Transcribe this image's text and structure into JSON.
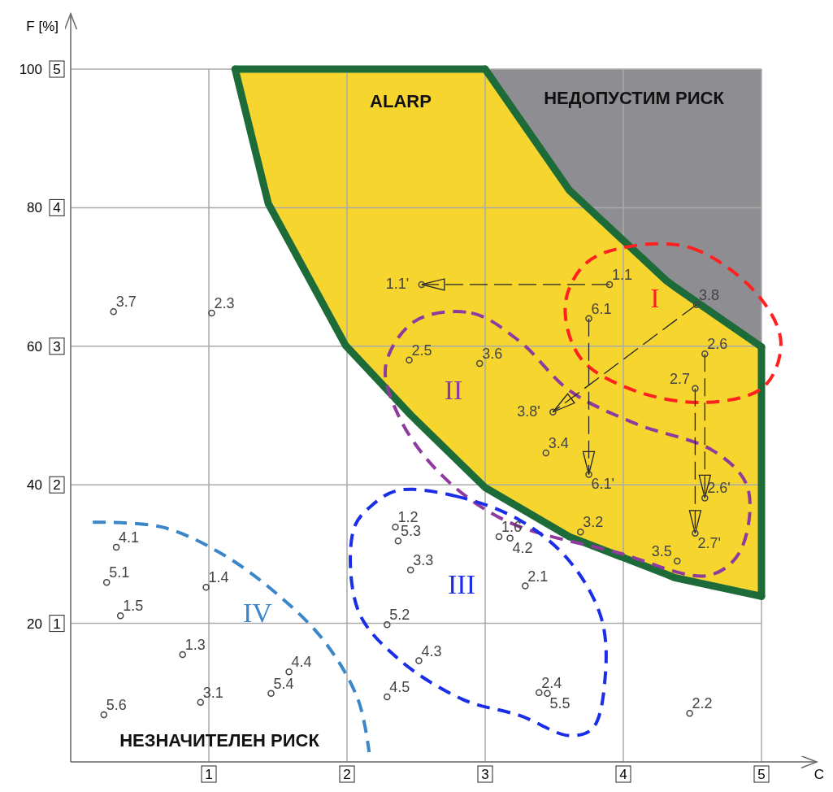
{
  "chart_data": {
    "type": "scatter",
    "xlabel": "C",
    "ylabel": "F [%]",
    "xlim": [
      0,
      5.4
    ],
    "xticks": [
      1,
      2,
      3,
      4,
      5
    ],
    "ylim": [
      0,
      108
    ],
    "yticks": [
      20,
      40,
      60,
      80,
      100
    ],
    "y2lim": [
      0,
      5.4
    ],
    "y2ticks": [
      1,
      2,
      3,
      4,
      5
    ],
    "grid": true,
    "annotations": [
      "ALARP",
      "НЕДОПУСТИМ РИСК",
      "НЕЗНАЧИТЕЛЕН РИСК",
      "I",
      "II",
      "III"
    ],
    "series": [
      {
        "type": "line",
        "color": "#1e6b3a",
        "line_style": "solid",
        "x": [
          3.0,
          3.61,
          4.31,
          4.37,
          5.0
        ],
        "values": [
          100,
          82.5,
          69.5,
          68.6,
          59.9
        ],
        "lower": [
          100,
          82.5,
          69.5,
          68.6,
          59.9
        ],
        "upper": [
          100,
          100,
          100,
          100,
          100
        ]
      },
      {
        "type": "line",
        "color": "#1e6b3a",
        "line_style": "solid",
        "x": [
          1.19,
          1.43,
          1.99,
          2.46,
          3.0,
          3.61,
          4.31,
          4.37,
          5.0
        ],
        "values": [
          100,
          80.6,
          60.1,
          50.1,
          39.6,
          32.5,
          27.1,
          26.6,
          23.9
        ],
        "lower": [
          100,
          80.6,
          60.1,
          50.1,
          39.6,
          32.5,
          27.1,
          26.6,
          23.9
        ],
        "upper": [
          100,
          100,
          100,
          100,
          100,
          82.5,
          69.5,
          68.6,
          59.9
        ]
      },
      {
        "type": "line",
        "color": "#1e6b3a",
        "line_style": "solid",
        "x": [
          1.19,
          3.0
        ],
        "values": [
          100,
          100
        ]
      },
      {
        "type": "line",
        "color": "#1e6b3a",
        "line_style": "solid",
        "x": [
          5.0,
          5.0
        ],
        "values": [
          59.9,
          23.9
        ]
      },
      {
        "type": "line",
        "name": "IV",
        "color": "#3a86c8",
        "line_style": "dashed",
        "x": [
          0.16,
          0.66,
          1.08,
          1.49,
          1.84,
          2.08,
          2.16
        ],
        "values": [
          34.6,
          33.9,
          30.2,
          24.3,
          17.3,
          9.0,
          1.4
        ]
      },
      {
        "name": "3.7",
        "color": "#444444",
        "marker": "circle",
        "x": [
          0.31
        ],
        "values": [
          65.0
        ]
      },
      {
        "name": "2.3",
        "color": "#444444",
        "marker": "circle",
        "x": [
          1.02
        ],
        "values": [
          64.8
        ]
      },
      {
        "name": "1.1'",
        "color": "#444444",
        "marker": "circle",
        "x": [
          2.54
        ],
        "values": [
          68.9
        ]
      },
      {
        "name": "1.1",
        "color": "#444444",
        "marker": "circle",
        "x": [
          3.9
        ],
        "values": [
          68.9
        ]
      },
      {
        "name": "3.8",
        "color": "#444444",
        "marker": "circle",
        "x": [
          4.53
        ],
        "values": [
          66.0
        ]
      },
      {
        "name": "6.1",
        "color": "#444444",
        "marker": "circle",
        "x": [
          3.75
        ],
        "values": [
          64.0
        ]
      },
      {
        "name": "2.5",
        "color": "#444444",
        "marker": "circle",
        "x": [
          2.45
        ],
        "values": [
          58.0
        ]
      },
      {
        "name": "3.6",
        "color": "#444444",
        "marker": "circle",
        "x": [
          2.96
        ],
        "values": [
          57.5
        ]
      },
      {
        "name": "2.6",
        "color": "#444444",
        "marker": "circle",
        "x": [
          4.59
        ],
        "values": [
          58.9
        ]
      },
      {
        "name": "2.7",
        "color": "#444444",
        "marker": "circle",
        "x": [
          4.52
        ],
        "values": [
          53.9
        ]
      },
      {
        "name": "3.8'",
        "color": "#444444",
        "marker": "circle",
        "x": [
          3.49
        ],
        "values": [
          50.5
        ]
      },
      {
        "name": "3.4",
        "color": "#444444",
        "marker": "circle",
        "x": [
          3.44
        ],
        "values": [
          44.6
        ]
      },
      {
        "name": "6.1'",
        "color": "#444444",
        "marker": "circle",
        "x": [
          3.75
        ],
        "values": [
          41.5
        ]
      },
      {
        "name": "2.6'",
        "color": "#444444",
        "marker": "circle",
        "x": [
          4.59
        ],
        "values": [
          38.1
        ]
      },
      {
        "name": "2.7'",
        "color": "#444444",
        "marker": "circle",
        "x": [
          4.52
        ],
        "values": [
          33.0
        ]
      },
      {
        "name": "1.2",
        "color": "#444444",
        "marker": "circle",
        "x": [
          2.35
        ],
        "values": [
          33.9
        ]
      },
      {
        "name": "5.3",
        "color": "#444444",
        "marker": "circle",
        "x": [
          2.37
        ],
        "values": [
          31.9
        ]
      },
      {
        "name": "1.6",
        "color": "#444444",
        "marker": "circle",
        "x": [
          3.1
        ],
        "values": [
          32.5
        ]
      },
      {
        "name": "4.2",
        "color": "#444444",
        "marker": "circle",
        "x": [
          3.18
        ],
        "values": [
          32.3
        ]
      },
      {
        "name": "3.2",
        "color": "#444444",
        "marker": "circle",
        "x": [
          3.69
        ],
        "values": [
          33.2
        ]
      },
      {
        "name": "3.3",
        "color": "#444444",
        "marker": "circle",
        "x": [
          2.46
        ],
        "values": [
          27.7
        ]
      },
      {
        "name": "2.1",
        "color": "#444444",
        "marker": "circle",
        "x": [
          3.29
        ],
        "values": [
          25.4
        ]
      },
      {
        "name": "3.5",
        "color": "#444444",
        "marker": "circle",
        "x": [
          4.39
        ],
        "values": [
          29.0
        ]
      },
      {
        "name": "4.1",
        "color": "#444444",
        "marker": "circle",
        "x": [
          0.33
        ],
        "values": [
          31.0
        ]
      },
      {
        "name": "5.1",
        "color": "#444444",
        "marker": "circle",
        "x": [
          0.26
        ],
        "values": [
          25.9
        ]
      },
      {
        "name": "1.4",
        "color": "#444444",
        "marker": "circle",
        "x": [
          0.98
        ],
        "values": [
          25.2
        ]
      },
      {
        "name": "1.5",
        "color": "#444444",
        "marker": "circle",
        "x": [
          0.36
        ],
        "values": [
          21.1
        ]
      },
      {
        "name": "5.2",
        "color": "#444444",
        "marker": "circle",
        "x": [
          2.29
        ],
        "values": [
          19.8
        ]
      },
      {
        "name": "1.3",
        "color": "#444444",
        "marker": "circle",
        "x": [
          0.81
        ],
        "values": [
          15.5
        ]
      },
      {
        "name": "4.3",
        "color": "#444444",
        "marker": "circle",
        "x": [
          2.52
        ],
        "values": [
          14.6
        ]
      },
      {
        "name": "4.4",
        "color": "#444444",
        "marker": "circle",
        "x": [
          1.58
        ],
        "values": [
          13.0
        ]
      },
      {
        "name": "5.4",
        "color": "#444444",
        "marker": "circle",
        "x": [
          1.45
        ],
        "values": [
          9.9
        ]
      },
      {
        "name": "3.1",
        "color": "#444444",
        "marker": "circle",
        "x": [
          0.94
        ],
        "values": [
          8.6
        ]
      },
      {
        "name": "4.5",
        "color": "#444444",
        "marker": "circle",
        "x": [
          2.29
        ],
        "values": [
          9.4
        ]
      },
      {
        "name": "2.4",
        "color": "#444444",
        "marker": "circle",
        "x": [
          3.39
        ],
        "values": [
          10.0
        ]
      },
      {
        "name": "5.5",
        "color": "#444444",
        "marker": "circle",
        "x": [
          3.45
        ],
        "values": [
          9.9
        ]
      },
      {
        "name": "5.6",
        "color": "#444444",
        "marker": "circle",
        "x": [
          0.24
        ],
        "values": [
          6.8
        ]
      },
      {
        "name": "2.2",
        "color": "#444444",
        "marker": "circle",
        "x": [
          4.48
        ],
        "values": [
          7.0
        ]
      }
    ]
  }
}
